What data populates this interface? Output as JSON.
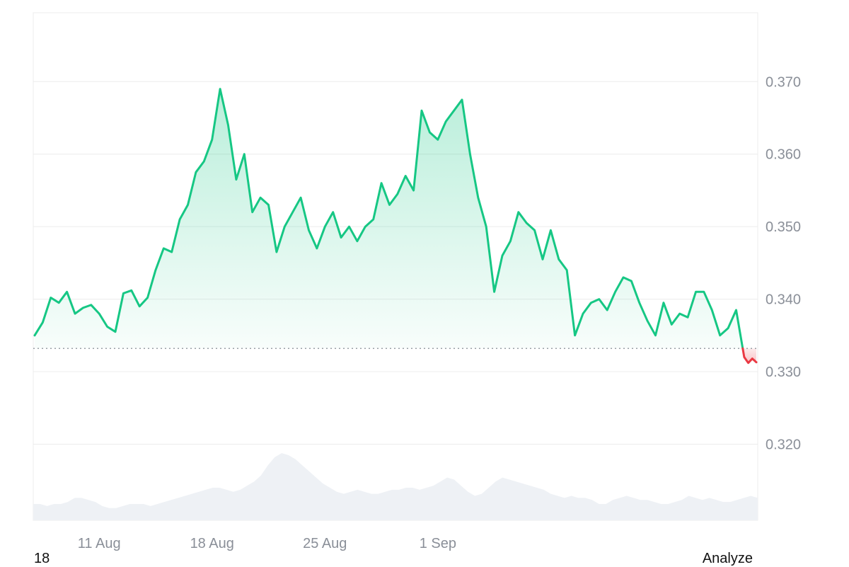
{
  "chart_data": {
    "type": "area",
    "y_axis": {
      "position": "right",
      "ticks": [
        "0.370",
        "0.360",
        "0.350",
        "0.340",
        "0.330",
        "0.320"
      ],
      "range": [
        0.3095,
        0.3795
      ]
    },
    "x_axis": {
      "ticks": [
        "11 Aug",
        "18 Aug",
        "25 Aug",
        "1 Sep"
      ]
    },
    "grid": true,
    "reference_price": 0.3332,
    "series": [
      {
        "type": "line",
        "points": [
          [
            "8/7 00:00",
            0.335
          ],
          [
            "8/7 12:00",
            0.3368
          ],
          [
            "8/8 00:00",
            0.3402
          ],
          [
            "8/8 12:00",
            0.3395
          ],
          [
            "8/9 00:00",
            0.341
          ],
          [
            "8/9 12:00",
            0.338
          ],
          [
            "8/10 00:00",
            0.3388
          ],
          [
            "8/10 12:00",
            0.3392
          ],
          [
            "8/11 00:00",
            0.338
          ],
          [
            "8/11 12:00",
            0.3362
          ],
          [
            "8/12 00:00",
            0.3355
          ],
          [
            "8/12 12:00",
            0.3408
          ],
          [
            "8/13 00:00",
            0.3412
          ],
          [
            "8/13 12:00",
            0.339
          ],
          [
            "8/14 00:00",
            0.3402
          ],
          [
            "8/14 12:00",
            0.344
          ],
          [
            "8/15 00:00",
            0.347
          ],
          [
            "8/15 12:00",
            0.3465
          ],
          [
            "8/16 00:00",
            0.351
          ],
          [
            "8/16 12:00",
            0.353
          ],
          [
            "8/17 00:00",
            0.3575
          ],
          [
            "8/17 12:00",
            0.359
          ],
          [
            "8/18 00:00",
            0.362
          ],
          [
            "8/18 12:00",
            0.369
          ],
          [
            "8/19 00:00",
            0.364
          ],
          [
            "8/19 12:00",
            0.3565
          ],
          [
            "8/20 00:00",
            0.36
          ],
          [
            "8/20 12:00",
            0.352
          ],
          [
            "8/21 00:00",
            0.354
          ],
          [
            "8/21 12:00",
            0.353
          ],
          [
            "8/22 00:00",
            0.3465
          ],
          [
            "8/22 12:00",
            0.35
          ],
          [
            "8/23 00:00",
            0.352
          ],
          [
            "8/23 12:00",
            0.354
          ],
          [
            "8/24 00:00",
            0.3495
          ],
          [
            "8/24 12:00",
            0.347
          ],
          [
            "8/25 00:00",
            0.35
          ],
          [
            "8/25 12:00",
            0.352
          ],
          [
            "8/26 00:00",
            0.3485
          ],
          [
            "8/26 12:00",
            0.35
          ],
          [
            "8/27 00:00",
            0.348
          ],
          [
            "8/27 12:00",
            0.35
          ],
          [
            "8/28 00:00",
            0.351
          ],
          [
            "8/28 12:00",
            0.356
          ],
          [
            "8/29 00:00",
            0.353
          ],
          [
            "8/29 12:00",
            0.3545
          ],
          [
            "8/30 00:00",
            0.357
          ],
          [
            "8/30 12:00",
            0.355
          ],
          [
            "8/31 00:00",
            0.366
          ],
          [
            "8/31 12:00",
            0.363
          ],
          [
            "9/1 00:00",
            0.362
          ],
          [
            "9/1 12:00",
            0.3645
          ],
          [
            "9/2 00:00",
            0.366
          ],
          [
            "9/2 12:00",
            0.3675
          ],
          [
            "9/3 00:00",
            0.36
          ],
          [
            "9/3 12:00",
            0.354
          ],
          [
            "9/4 00:00",
            0.35
          ],
          [
            "9/4 12:00",
            0.341
          ],
          [
            "9/5 00:00",
            0.346
          ],
          [
            "9/5 12:00",
            0.348
          ],
          [
            "9/6 00:00",
            0.352
          ],
          [
            "9/6 12:00",
            0.3505
          ],
          [
            "9/7 00:00",
            0.3495
          ],
          [
            "9/7 12:00",
            0.3455
          ],
          [
            "9/8 00:00",
            0.3495
          ],
          [
            "9/8 12:00",
            0.3455
          ],
          [
            "9/9 00:00",
            0.344
          ],
          [
            "9/9 12:00",
            0.335
          ],
          [
            "9/10 00:00",
            0.338
          ],
          [
            "9/10 12:00",
            0.3395
          ],
          [
            "9/11 00:00",
            0.34
          ],
          [
            "9/11 12:00",
            0.3385
          ],
          [
            "9/12 00:00",
            0.341
          ],
          [
            "9/12 12:00",
            0.343
          ],
          [
            "9/13 00:00",
            0.3425
          ],
          [
            "9/13 12:00",
            0.3395
          ],
          [
            "9/14 00:00",
            0.337
          ],
          [
            "9/14 12:00",
            0.335
          ],
          [
            "9/15 00:00",
            0.3395
          ],
          [
            "9/15 12:00",
            0.3365
          ],
          [
            "9/16 00:00",
            0.338
          ],
          [
            "9/16 12:00",
            0.3375
          ],
          [
            "9/17 00:00",
            0.341
          ],
          [
            "9/17 12:00",
            0.341
          ],
          [
            "9/18 00:00",
            0.3385
          ],
          [
            "9/18 12:00",
            0.335
          ],
          [
            "9/19 00:00",
            0.336
          ],
          [
            "9/19 12:00",
            0.3385
          ],
          [
            "9/20 00:00",
            0.332
          ],
          [
            "9/20 06:00",
            0.3312
          ],
          [
            "9/20 12:00",
            0.3318
          ],
          [
            "9/20 18:00",
            0.3313
          ]
        ]
      },
      {
        "type": "area",
        "name": "",
        "values": [
          8,
          8,
          7,
          8,
          8,
          9,
          11,
          11,
          10,
          9,
          7,
          6,
          6,
          7,
          8,
          8,
          8,
          7,
          8,
          9,
          10,
          11,
          12,
          13,
          14,
          15,
          16,
          16,
          15,
          14,
          15,
          17,
          19,
          22,
          27,
          31,
          33,
          32,
          30,
          27,
          24,
          21,
          18,
          16,
          14,
          13,
          14,
          15,
          14,
          13,
          13,
          14,
          15,
          15,
          16,
          16,
          15,
          16,
          17,
          19,
          21,
          20,
          17,
          14,
          12,
          13,
          16,
          19,
          21,
          20,
          19,
          18,
          17,
          16,
          15,
          13,
          12,
          11,
          12,
          11,
          11,
          10,
          8,
          8,
          10,
          11,
          12,
          11,
          10,
          10,
          9,
          8,
          8,
          9,
          10,
          12,
          11,
          10,
          11,
          10,
          9,
          9,
          10,
          11,
          12,
          11
        ]
      }
    ]
  },
  "footer": {
    "left": "18",
    "right": "Analyze"
  }
}
